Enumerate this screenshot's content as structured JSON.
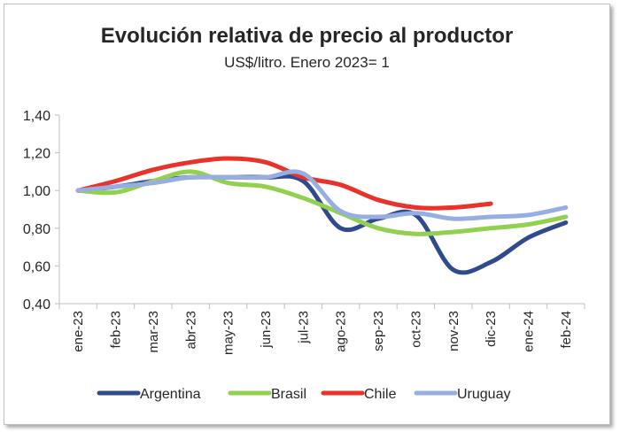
{
  "chart_data": {
    "type": "line",
    "title": "Evolución relativa de precio al productor",
    "subtitle": "US$/litro. Enero 2023= 1",
    "xlabel": "",
    "ylabel": "",
    "categories": [
      "ene-23",
      "feb-23",
      "mar-23",
      "abr-23",
      "may-23",
      "jun-23",
      "jul-23",
      "ago-23",
      "sep-23",
      "oct-23",
      "nov-23",
      "dic-23",
      "ene-24",
      "feb-24"
    ],
    "yticks": [
      "0,40",
      "0,60",
      "0,80",
      "1,00",
      "1,20",
      "1,40"
    ],
    "ylim": [
      0.4,
      1.4
    ],
    "grid": false,
    "legend_position": "bottom",
    "series": [
      {
        "name": "Argentina",
        "color": "#2f4b8e",
        "values": [
          1.0,
          1.02,
          1.05,
          1.07,
          1.07,
          1.07,
          1.05,
          0.8,
          0.85,
          0.87,
          0.58,
          0.62,
          0.75,
          0.83
        ]
      },
      {
        "name": "Brasil",
        "color": "#92d050",
        "values": [
          1.0,
          0.99,
          1.05,
          1.1,
          1.04,
          1.02,
          0.96,
          0.88,
          0.8,
          0.77,
          0.78,
          0.8,
          0.82,
          0.86
        ]
      },
      {
        "name": "Chile",
        "color": "#e8322a",
        "values": [
          1.0,
          1.05,
          1.11,
          1.15,
          1.17,
          1.15,
          1.07,
          1.03,
          0.95,
          0.91,
          0.91,
          0.93,
          null,
          null
        ]
      },
      {
        "name": "Uruguay",
        "color": "#97aee0",
        "values": [
          1.0,
          1.02,
          1.04,
          1.07,
          1.07,
          1.07,
          1.09,
          0.89,
          0.86,
          0.88,
          0.85,
          0.86,
          0.87,
          0.91
        ]
      }
    ]
  }
}
